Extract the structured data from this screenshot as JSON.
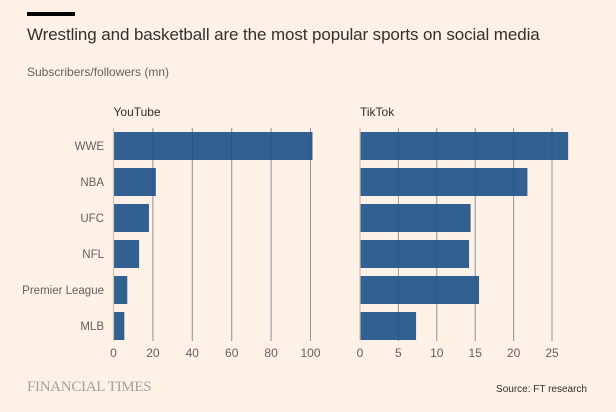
{
  "header": {
    "title": "Wrestling and basketball are the most popular sports on social media",
    "subtitle": "Subscribers/followers (mn)"
  },
  "footer": {
    "logo": "FINANCIAL TIMES",
    "source": "Source: FT research"
  },
  "colors": {
    "bar": "#2e5d8e",
    "grid": "#c9bfb5",
    "background": "#fff1e5"
  },
  "chart_data": [
    {
      "type": "bar",
      "orientation": "horizontal",
      "title": "YouTube",
      "xlabel": "Subscribers/followers (mn)",
      "ylabel": "",
      "categories": [
        "WWE",
        "NBA",
        "UFC",
        "NFL",
        "Premier League",
        "MLB"
      ],
      "values": [
        101,
        21.5,
        18,
        13,
        7,
        5.5
      ],
      "xlim": [
        0,
        100
      ],
      "xticks": [
        0,
        20,
        40,
        60,
        80,
        100
      ],
      "grid": true
    },
    {
      "type": "bar",
      "orientation": "horizontal",
      "title": "TikTok",
      "xlabel": "Subscribers/followers (mn)",
      "ylabel": "",
      "categories": [
        "WWE",
        "NBA",
        "UFC",
        "NFL",
        "Premier League",
        "MLB"
      ],
      "values": [
        27.1,
        21.8,
        14.4,
        14.2,
        15.5,
        7.3
      ],
      "xlim": [
        0,
        25
      ],
      "xticks": [
        0,
        5,
        10,
        15,
        20,
        25
      ],
      "grid": true
    }
  ]
}
